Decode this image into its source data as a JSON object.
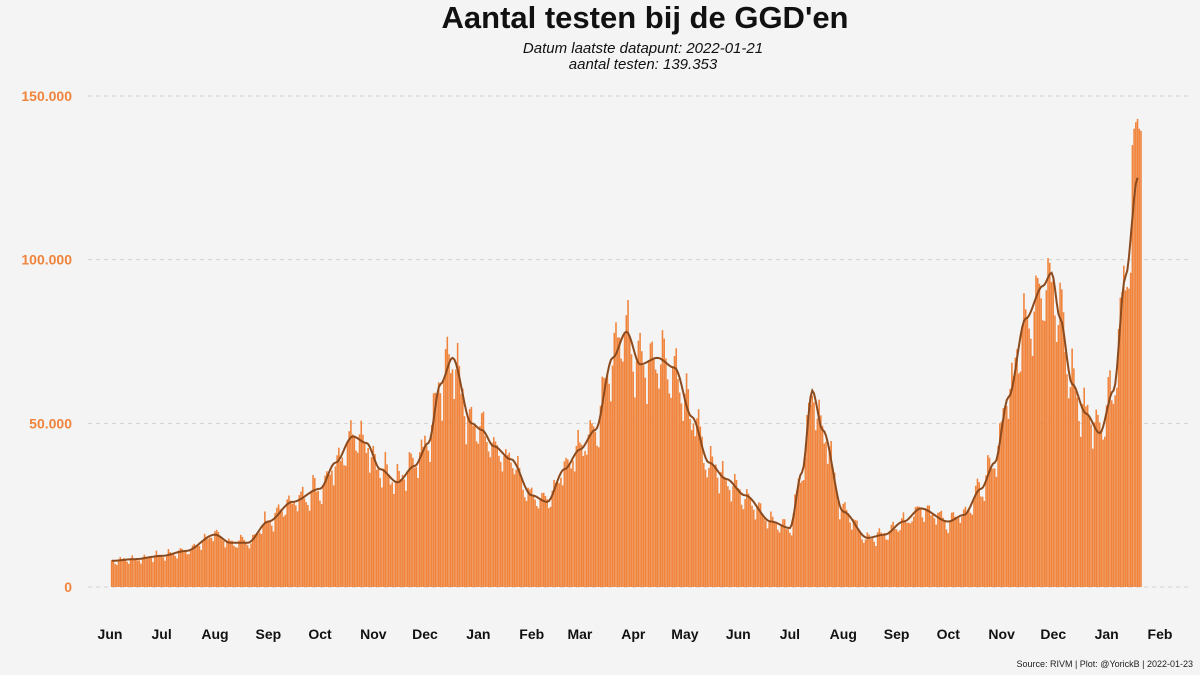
{
  "chart_data": {
    "type": "bar",
    "title": "Aantal testen bij de GGD'en",
    "subtitle_line1": "Datum laatste datapunt: 2022-01-21",
    "subtitle_line2": "aantal testen: 139.353",
    "caption": "Source: RIVM | Plot: @YorickB |  2022-01-23",
    "xlabel": "",
    "ylabel": "",
    "ylim": [
      0,
      150000
    ],
    "y_ticks": [
      {
        "value": 0,
        "label": "0"
      },
      {
        "value": 50000,
        "label": "50.000"
      },
      {
        "value": 100000,
        "label": "100.000"
      },
      {
        "value": 150000,
        "label": "150.000"
      }
    ],
    "x_range": [
      "2020-06-01",
      "2022-02-01"
    ],
    "x_ticks": [
      {
        "date": "2020-06-01",
        "label": "Jun"
      },
      {
        "date": "2020-07-01",
        "label": "Jul"
      },
      {
        "date": "2020-08-01",
        "label": "Aug"
      },
      {
        "date": "2020-09-01",
        "label": "Sep"
      },
      {
        "date": "2020-10-01",
        "label": "Oct"
      },
      {
        "date": "2020-11-01",
        "label": "Nov"
      },
      {
        "date": "2020-12-01",
        "label": "Dec"
      },
      {
        "date": "2021-01-01",
        "label": "Jan"
      },
      {
        "date": "2021-02-01",
        "label": "Feb"
      },
      {
        "date": "2021-03-01",
        "label": "Mar"
      },
      {
        "date": "2021-04-01",
        "label": "Apr"
      },
      {
        "date": "2021-05-01",
        "label": "May"
      },
      {
        "date": "2021-06-01",
        "label": "Jun"
      },
      {
        "date": "2021-07-01",
        "label": "Jul"
      },
      {
        "date": "2021-08-01",
        "label": "Aug"
      },
      {
        "date": "2021-09-01",
        "label": "Sep"
      },
      {
        "date": "2021-10-01",
        "label": "Oct"
      },
      {
        "date": "2021-11-01",
        "label": "Nov"
      },
      {
        "date": "2021-12-01",
        "label": "Dec"
      },
      {
        "date": "2022-01-01",
        "label": "Jan"
      },
      {
        "date": "2022-02-01",
        "label": "Feb"
      }
    ],
    "grid": "horizontal dashed",
    "series": [
      {
        "kind": "bar",
        "color": "#f0843c",
        "trend_points": [
          [
            "2020-06-02",
            8000
          ],
          [
            "2020-06-15",
            8500
          ],
          [
            "2020-07-01",
            9500
          ],
          [
            "2020-07-15",
            11000
          ],
          [
            "2020-08-01",
            16000
          ],
          [
            "2020-08-10",
            13500
          ],
          [
            "2020-08-20",
            13500
          ],
          [
            "2020-09-01",
            20000
          ],
          [
            "2020-09-15",
            26000
          ],
          [
            "2020-10-01",
            30000
          ],
          [
            "2020-10-10",
            38000
          ],
          [
            "2020-10-20",
            46000
          ],
          [
            "2020-10-28",
            44000
          ],
          [
            "2020-11-05",
            36000
          ],
          [
            "2020-11-15",
            32000
          ],
          [
            "2020-11-25",
            37000
          ],
          [
            "2020-12-03",
            44000
          ],
          [
            "2020-12-10",
            62000
          ],
          [
            "2020-12-17",
            70000
          ],
          [
            "2020-12-28",
            50000
          ],
          [
            "2021-01-03",
            48000
          ],
          [
            "2021-01-10",
            43000
          ],
          [
            "2021-01-20",
            39000
          ],
          [
            "2021-02-01",
            28000
          ],
          [
            "2021-02-10",
            26000
          ],
          [
            "2021-02-20",
            36000
          ],
          [
            "2021-03-01",
            42000
          ],
          [
            "2021-03-10",
            48000
          ],
          [
            "2021-03-20",
            70000
          ],
          [
            "2021-03-28",
            78000
          ],
          [
            "2021-04-05",
            68000
          ],
          [
            "2021-04-15",
            70000
          ],
          [
            "2021-04-25",
            67000
          ],
          [
            "2021-05-05",
            52000
          ],
          [
            "2021-05-15",
            38000
          ],
          [
            "2021-05-25",
            33000
          ],
          [
            "2021-06-05",
            28000
          ],
          [
            "2021-06-20",
            20000
          ],
          [
            "2021-07-01",
            18000
          ],
          [
            "2021-07-08",
            35000
          ],
          [
            "2021-07-14",
            60000
          ],
          [
            "2021-07-20",
            48000
          ],
          [
            "2021-08-01",
            23000
          ],
          [
            "2021-08-15",
            15000
          ],
          [
            "2021-08-25",
            16000
          ],
          [
            "2021-09-05",
            20000
          ],
          [
            "2021-09-15",
            24000
          ],
          [
            "2021-10-01",
            20000
          ],
          [
            "2021-10-10",
            22000
          ],
          [
            "2021-10-20",
            30000
          ],
          [
            "2021-10-28",
            38000
          ],
          [
            "2021-11-05",
            58000
          ],
          [
            "2021-11-15",
            82000
          ],
          [
            "2021-11-25",
            92000
          ],
          [
            "2021-11-30",
            96000
          ],
          [
            "2021-12-05",
            82000
          ],
          [
            "2021-12-12",
            62000
          ],
          [
            "2021-12-20",
            53000
          ],
          [
            "2021-12-28",
            47000
          ],
          [
            "2022-01-05",
            60000
          ],
          [
            "2022-01-12",
            95000
          ],
          [
            "2022-01-19",
            125000
          ]
        ],
        "last_bars": [
          [
            "2022-01-15",
            96000
          ],
          [
            "2022-01-16",
            135000
          ],
          [
            "2022-01-17",
            140000
          ],
          [
            "2022-01-18",
            142000
          ],
          [
            "2022-01-19",
            143000
          ],
          [
            "2022-01-20",
            140000
          ],
          [
            "2022-01-21",
            139353
          ]
        ]
      },
      {
        "kind": "line",
        "color": "#8b4a1e",
        "smoothing": "7-day rolling average"
      }
    ]
  }
}
